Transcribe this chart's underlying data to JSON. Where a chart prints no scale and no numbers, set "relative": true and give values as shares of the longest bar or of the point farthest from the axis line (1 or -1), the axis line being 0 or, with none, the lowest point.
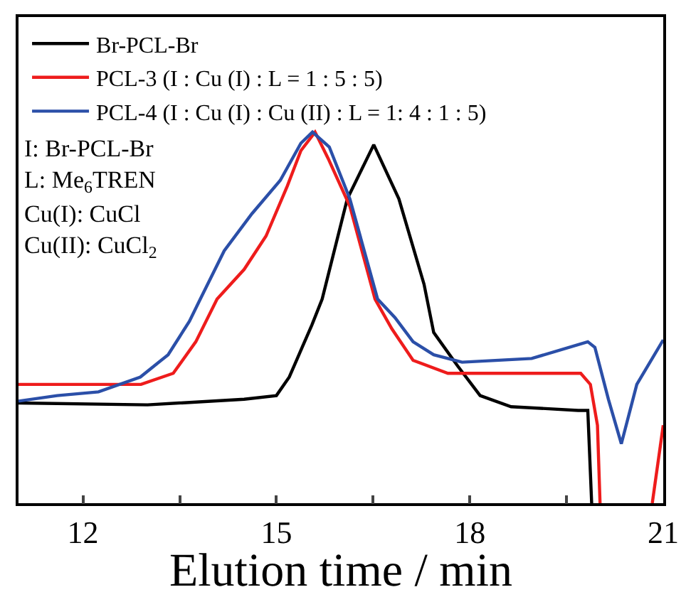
{
  "chart_data": {
    "type": "line",
    "relative": true,
    "xlabel": "Elution time / min",
    "xlim": [
      11,
      21
    ],
    "xticks": [
      12,
      {
        "value": 13.5,
        "label": null
      },
      15,
      {
        "value": 16.5,
        "label": null
      },
      18,
      {
        "value": 19.5,
        "label": null
      },
      21
    ],
    "legend": "top left",
    "grid": false,
    "tick_labels": "x",
    "annotations": [
      "I: Br-PCL-Br",
      "L: Me$_{6}$TREN",
      "Cu(I): CuCl",
      "Cu(II): CuCl$_{2}$"
    ],
    "series": [
      {
        "name": "Br-PCL-Br",
        "color": "#000000",
        "x": [
          11,
          13,
          14.5,
          15,
          15.2,
          15.4,
          15.55,
          15.71,
          16.1,
          16.51,
          16.9,
          17.29,
          17.44,
          17.81,
          18.16,
          18.64,
          19.68,
          19.83,
          19.89
        ],
        "values": [
          0.27,
          0.265,
          0.28,
          0.29,
          0.34,
          0.42,
          0.48,
          0.55,
          0.82,
          0.966,
          0.82,
          0.59,
          0.46,
          0.37,
          0.29,
          0.26,
          0.25,
          0.25,
          0
        ]
      },
      {
        "name": "PCL-3 (I : Cu (I) : L = 1 : 5 : 5)",
        "color": "#ee1c1c",
        "x": [
          11,
          12.9,
          13.4,
          13.75,
          14.08,
          14.5,
          14.84,
          15.17,
          15.38,
          15.6,
          15.8,
          16.14,
          16.53,
          16.79,
          17.12,
          17.66,
          18.09,
          19.72,
          19.87,
          19.98,
          20.02,
          20.4,
          20.83,
          21
        ],
        "values": [
          0.32,
          0.32,
          0.35,
          0.435,
          0.55,
          0.63,
          0.72,
          0.855,
          0.95,
          1,
          0.93,
          0.8,
          0.55,
          0.47,
          0.385,
          0.35,
          0.35,
          0.35,
          0.32,
          0.21,
          0,
          null,
          0,
          0.21
        ]
      },
      {
        "name": "PCL-4 (I : Cu (I) : Cu (II) : L = 1: 4 : 1 : 5)",
        "color": "#2b4fa8",
        "x": [
          11,
          11.6,
          12.24,
          12.89,
          13.32,
          13.65,
          13.82,
          14.19,
          14.62,
          15.06,
          15.38,
          15.56,
          15.82,
          16.14,
          16.57,
          16.84,
          17.12,
          17.44,
          17.88,
          18.96,
          19.83,
          19.94,
          20.15,
          20.35,
          20.59,
          21
        ],
        "values": [
          0.275,
          0.29,
          0.3,
          0.34,
          0.4,
          0.49,
          0.55,
          0.68,
          0.78,
          0.87,
          0.97,
          1,
          0.96,
          0.82,
          0.55,
          0.5,
          0.435,
          0.4,
          0.38,
          0.39,
          0.435,
          0.42,
          0.28,
          0.16,
          0.32,
          0.44
        ]
      }
    ]
  }
}
